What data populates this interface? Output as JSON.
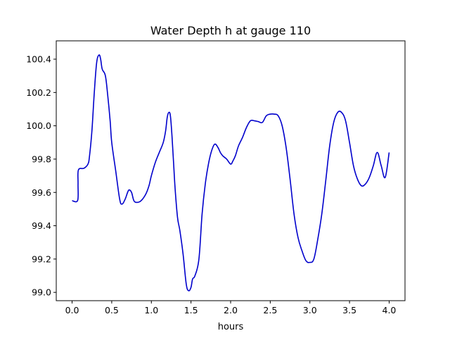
{
  "chart_data": {
    "type": "line",
    "title": "Water Depth h at gauge 110",
    "xlabel": "hours",
    "ylabel": "",
    "xlim": [
      -0.2,
      4.2
    ],
    "ylim": [
      98.95,
      100.51
    ],
    "xticks": [
      0.0,
      0.5,
      1.0,
      1.5,
      2.0,
      2.5,
      3.0,
      3.5,
      4.0
    ],
    "xtick_labels": [
      "0.0",
      "0.5",
      "1.0",
      "1.5",
      "2.0",
      "2.5",
      "3.0",
      "3.5",
      "4.0"
    ],
    "yticks": [
      99.0,
      99.2,
      99.4,
      99.6,
      99.8,
      100.0,
      100.2,
      100.4
    ],
    "ytick_labels": [
      "99.0",
      "99.2",
      "99.4",
      "99.6",
      "99.8",
      "100.0",
      "100.2",
      "100.4"
    ],
    "grid": false,
    "series": [
      {
        "name": "",
        "color": "#0000cc",
        "x": [
          0.0,
          0.07,
          0.075,
          0.08,
          0.15,
          0.2,
          0.22,
          0.25,
          0.28,
          0.31,
          0.34,
          0.36,
          0.38,
          0.42,
          0.45,
          0.48,
          0.5,
          0.55,
          0.6,
          0.63,
          0.67,
          0.7,
          0.72,
          0.75,
          0.78,
          0.82,
          0.87,
          0.93,
          0.97,
          1.0,
          1.05,
          1.1,
          1.15,
          1.18,
          1.2,
          1.22,
          1.24,
          1.26,
          1.28,
          1.3,
          1.33,
          1.36,
          1.4,
          1.44,
          1.47,
          1.5,
          1.52,
          1.55,
          1.6,
          1.64,
          1.68,
          1.72,
          1.76,
          1.8,
          1.84,
          1.87,
          1.9,
          1.95,
          2.0,
          2.03,
          2.06,
          2.1,
          2.15,
          2.2,
          2.25,
          2.3,
          2.35,
          2.4,
          2.45,
          2.5,
          2.55,
          2.6,
          2.65,
          2.7,
          2.75,
          2.8,
          2.85,
          2.9,
          2.95,
          3.0,
          3.05,
          3.1,
          3.15,
          3.2,
          3.25,
          3.3,
          3.35,
          3.4,
          3.45,
          3.5,
          3.55,
          3.6,
          3.65,
          3.7,
          3.75,
          3.8,
          3.85,
          3.9,
          3.95,
          4.0
        ],
        "y": [
          99.55,
          99.552,
          99.65,
          99.735,
          99.745,
          99.77,
          99.82,
          99.97,
          100.2,
          100.38,
          100.425,
          100.4,
          100.34,
          100.3,
          100.18,
          100.03,
          99.9,
          99.73,
          99.56,
          99.53,
          99.56,
          99.6,
          99.615,
          99.6,
          99.55,
          99.54,
          99.55,
          99.59,
          99.64,
          99.7,
          99.78,
          99.84,
          99.9,
          99.97,
          100.05,
          100.08,
          100.06,
          99.94,
          99.78,
          99.62,
          99.45,
          99.37,
          99.23,
          99.05,
          99.01,
          99.03,
          99.08,
          99.1,
          99.2,
          99.47,
          99.65,
          99.77,
          99.85,
          99.89,
          99.87,
          99.84,
          99.82,
          99.8,
          99.77,
          99.79,
          99.82,
          99.88,
          99.93,
          99.99,
          100.03,
          100.03,
          100.025,
          100.02,
          100.06,
          100.07,
          100.07,
          100.06,
          100.0,
          99.87,
          99.68,
          99.47,
          99.33,
          99.25,
          99.19,
          99.18,
          99.2,
          99.32,
          99.47,
          99.67,
          99.88,
          100.02,
          100.08,
          100.08,
          100.03,
          99.9,
          99.76,
          99.68,
          99.64,
          99.65,
          99.69,
          99.76,
          99.84,
          99.76,
          99.69,
          99.84
        ]
      }
    ]
  }
}
